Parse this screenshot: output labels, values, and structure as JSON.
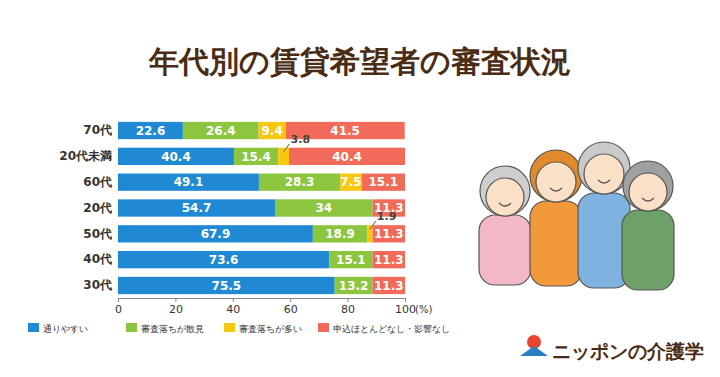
{
  "chart_data": {
    "type": "bar",
    "title": "年代別の賃貸希望者の審査状況",
    "orientation": "horizontal",
    "stacked": true,
    "data_labels": true,
    "grid": false,
    "legend": "bottom",
    "categories": [
      "70代",
      "20代未満",
      "60代",
      "20代",
      "50代",
      "40代",
      "30代"
    ],
    "series": [
      {
        "name": "通りやすい",
        "color": "#1f8ad3",
        "values": [
          22.6,
          40.4,
          49.1,
          54.7,
          67.9,
          73.6,
          75.5
        ]
      },
      {
        "name": "審査落ちが散見",
        "color": "#8cc63e",
        "values": [
          26.4,
          15.4,
          28.3,
          34,
          18.9,
          15.1,
          13.2
        ]
      },
      {
        "name": "審査落ちが多い",
        "color": "#f8c80f",
        "values": [
          9.4,
          3.8,
          7.5,
          0,
          1.9,
          0,
          0
        ]
      },
      {
        "name": "申込ほとんどなし・影響なし",
        "color": "#f26a5a",
        "values": [
          41.5,
          40.4,
          15.1,
          11.3,
          11.3,
          11.3,
          11.3
        ]
      }
    ],
    "xlim": [
      0,
      100
    ],
    "xticks": [
      0,
      20,
      40,
      60,
      80,
      100
    ],
    "x_label": "(%)"
  },
  "brand": "ニッポンの介護学"
}
